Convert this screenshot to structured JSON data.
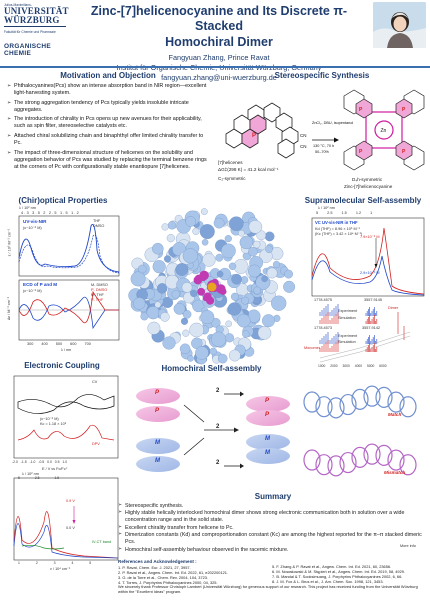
{
  "header": {
    "uni_small": "Julius-Maximilians-",
    "uni_line1": "UNIVERSITÄT",
    "uni_line2": "WÜRZBURG",
    "faculty": "Fakultät für Chemie und Pharmazie",
    "oc_line1": "ORGANISCHE",
    "oc_line2": "CHEMIE",
    "title_line1": "Zinc-[7]helicenocyanine and Its Discrete π-Stacked",
    "title_line2": "Homochiral Dimer",
    "authors": "Fangyuan Zhang, Prince Ravat",
    "affiliation": "Institut für Organische Chemie, Universität Würzburg, Germany",
    "email": "fangyuan.zhang@uni-wuerzburg.de"
  },
  "motivation": {
    "title": "Motivation and Objection",
    "bullets": [
      "Phthalocyanines(Pcs) show an intense absorption band in NIR region—excellent light-harvesting system.",
      "The strong aggregation tendency of Pcs typically yields insoluble intricate aggregates.",
      "The introduction of chirality in Pcs opens up new avenues for their applicability, such as spin filter, stereoselective catalysts etc.",
      "Attached chiral solubilizing chain and binaphthyl offer limited chirality transfer to Pc.",
      "The impact of three-dimensional structure of helicenes on the solubility and aggregation behavior of Pcs was studied by replacing the terminal benzene rings at the corners of Pc with configurationally stable enantiopure [7]helicenes."
    ]
  },
  "synthesis": {
    "title": "Stereospecific Synthesis",
    "reagents": "ZnCl₂, DBU, isopentanol",
    "conditions": "130 °C, 70 h",
    "yield": "50–70%",
    "start_label": "[7]helicenes",
    "barrier": "ΔG‡(298 K) = 41.2 kcal mol⁻¹",
    "start_sym": "C₂-symmetric",
    "product_sym": "D₄h-symmetric",
    "product_name": "Zinc-[7]helicenocyanine",
    "cn": "CN",
    "p": "P",
    "zn": "Zn"
  },
  "chiroptical": {
    "title": "(Chir)optical Properties",
    "top_axis": "λ / 10² nm",
    "top_ticks": [
      "4.3",
      "3.5",
      "2",
      "2.5",
      "1.5",
      "1.2"
    ],
    "uv_label": "UV-vis-NIR",
    "conc": "(c~10⁻⁶ M)",
    "legend_thf": "THF",
    "legend_dmso": "DMSO",
    "y1": "ε / 10⁵ M⁻¹ cm⁻¹",
    "ecd_label": "ECD of P and M",
    "ecd_conc": "(c~10⁻⁶ M)",
    "ecd_legend": [
      "M- DMSO",
      "P- DMSO",
      "M- THF",
      "P- THF"
    ],
    "y2": "Δε / M⁻¹ cm⁻¹",
    "x_ticks": [
      "300",
      "400",
      "500",
      "600",
      "700"
    ],
    "xlabel": "λ / nm"
  },
  "supra": {
    "title": "Supramolecular Self-assembly",
    "top_axis": "λ / 10² nm",
    "top_ticks": [
      "5",
      "2.5",
      "1.5",
      "1.2",
      "1"
    ],
    "vc_label": "VC UV-vis-NIR in THF",
    "kd": "Kd (THF) = 8.96 × 10⁶ M⁻¹",
    "kc": "(Kc (THF) = 3.42 × 10⁴ M⁻¹)",
    "conc_high": "7.9×10⁻⁶ M",
    "conc_low": "2.9×10⁻⁹ M",
    "ms_labels": [
      "1778.4575",
      "3557.9145",
      "1778.4573",
      "3557.9142"
    ],
    "monomer": "Monomer",
    "dimer": "Dimer",
    "experiment": "Experiment",
    "simulation": "Simulation",
    "x_ticks": [
      "1000",
      "2000",
      "3000",
      "4000",
      "5000",
      "6000"
    ],
    "y_ticks": [
      "0",
      "2",
      "4",
      "6"
    ],
    "ms_xlabel": "m/z"
  },
  "coupling": {
    "title": "Electronic Coupling",
    "cv": "CV",
    "dpv": "DPV",
    "conc": "(c~10⁻⁶ M)",
    "kc": "Kc = 1.18 × 10⁶",
    "x_ticks": [
      "-2.0",
      "-1.5",
      "-1.0",
      "-0.5",
      "0.0",
      "0.5",
      "1.0"
    ],
    "xlabel": "E / V vs Fc/Fc⁺",
    "top_axis": "λ / 10² nm",
    "top_ticks": [
      "5",
      "2.5",
      "1.5"
    ],
    "v_high": "0.9 V",
    "v_low": "0.0 V",
    "ivct": "IV-CT band",
    "bottom_ticks": [
      "1",
      "2",
      "3",
      "4",
      "5"
    ],
    "bottom_xlabel": "ν / 10⁴ cm⁻¹",
    "y_ticks": [
      "0",
      "1",
      "2"
    ]
  },
  "homochiral": {
    "title": "Homochiral Self-assembly",
    "p": "P",
    "m": "M",
    "two": "2",
    "match": "Match",
    "mismatch": "Mismatch"
  },
  "summary": {
    "title": "Summary",
    "bullets": [
      "Stereospecific synthesis.",
      "Highly stable helically interlocked homochiral dimer shows strong electronic communication both in solution over a wide concentration range and in the solid state.",
      "Excellent chirality transfer from helicene to Pc.",
      "Dimerization constants (Kd) and comproportionation constant (Kc) are among the highest reported for the π–π stacked dimeric Pcs.",
      "Homochiral self-assembly behaviour observed in the racemic mixture."
    ],
    "more_info": "More info"
  },
  "references": {
    "title": "References and Acknowledgement :",
    "left": [
      "1. P. Ravat, Chem. Eur. J. 2021, 27, 3957.",
      "2. P. Ravat et al., Angew. Chem. Int. Ed. 2022, 61, e202200121.",
      "3. G. de la Torre et al., Chem. Rev. 2004, 104, 3723.",
      "4. T. Torres, J. Porphyrins Phthalocyanines 2000, 04, 325."
    ],
    "right": [
      "5. F. Zhang & P. Ravat et al., Angew. Chem. Int. Ed. 2021, 60, 23656.",
      "6. M. Nowakowski & M. Stępień et al., Angew. Chem. Int. Ed. 2019, 58, 4929.",
      "7. B. Mandal & T. Sooksimuang, J. Porphyrins Phthalocyanines 2002, 6, 66.",
      "8. J. M. Fox & L. Brus et al., J. Am. Chem. Soc. 1998, 121, 3453."
    ],
    "ack": "We sincerely thank Professor Christoph Lambert (Universität Würzburg) for generous support of our research. This project has received funding from the Universität Würzburg within the \"Excellent Ideas\" program."
  },
  "colors": {
    "navy": "#1f3d6e",
    "blue": "#1f48c8",
    "red": "#d21f1f",
    "magenta": "#d01aa0",
    "accent": "#3a6fb0"
  }
}
